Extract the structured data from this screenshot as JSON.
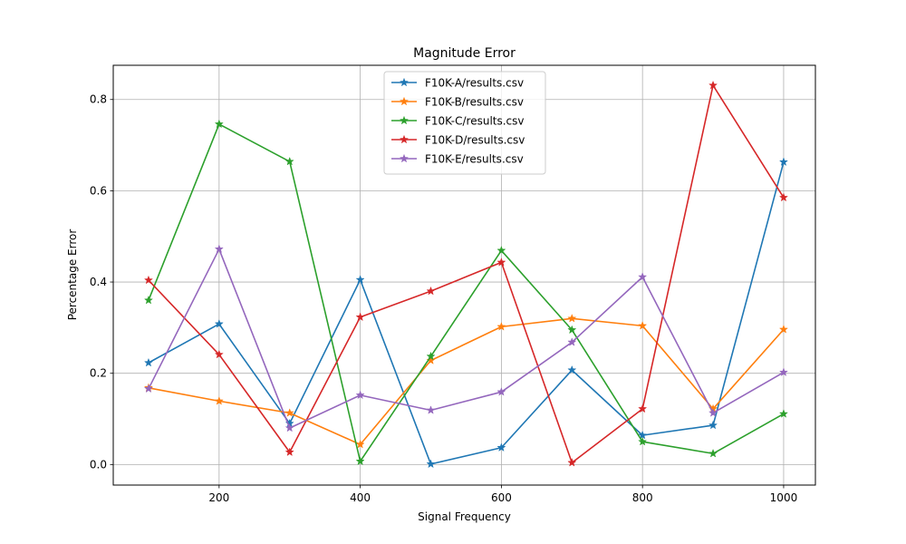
{
  "chart_data": {
    "type": "line",
    "title": "Magnitude Error",
    "xlabel": "Signal Frequency",
    "ylabel": "Percentage Error",
    "x": [
      100,
      200,
      300,
      400,
      500,
      600,
      700,
      800,
      900,
      1000
    ],
    "xlim": [
      50,
      1045
    ],
    "ylim": [
      -0.045,
      0.875
    ],
    "xticks": [
      200,
      400,
      600,
      800,
      1000
    ],
    "xtick_labels": [
      "200",
      "400",
      "600",
      "800",
      "1000"
    ],
    "yticks": [
      0.0,
      0.2,
      0.4,
      0.6,
      0.8
    ],
    "ytick_labels": [
      "0.0",
      "0.2",
      "0.4",
      "0.6",
      "0.8"
    ],
    "grid": true,
    "legend_position": "top-center",
    "marker": "star",
    "series": [
      {
        "name": "F10K-A/results.csv",
        "color": "#1f77b4",
        "values": [
          0.223,
          0.308,
          0.09,
          0.405,
          0.001,
          0.037,
          0.207,
          0.064,
          0.086,
          0.663
        ]
      },
      {
        "name": "F10K-B/results.csv",
        "color": "#ff7f0e",
        "values": [
          0.168,
          0.139,
          0.113,
          0.044,
          0.228,
          0.302,
          0.32,
          0.304,
          0.122,
          0.296
        ]
      },
      {
        "name": "F10K-C/results.csv",
        "color": "#2ca02c",
        "values": [
          0.36,
          0.746,
          0.664,
          0.007,
          0.237,
          0.469,
          0.295,
          0.05,
          0.024,
          0.111
        ]
      },
      {
        "name": "F10K-D/results.csv",
        "color": "#d62728",
        "values": [
          0.404,
          0.241,
          0.027,
          0.323,
          0.38,
          0.443,
          0.004,
          0.122,
          0.831,
          0.585
        ]
      },
      {
        "name": "F10K-E/results.csv",
        "color": "#9467bd",
        "values": [
          0.166,
          0.472,
          0.08,
          0.152,
          0.119,
          0.159,
          0.268,
          0.411,
          0.113,
          0.202
        ]
      }
    ]
  }
}
